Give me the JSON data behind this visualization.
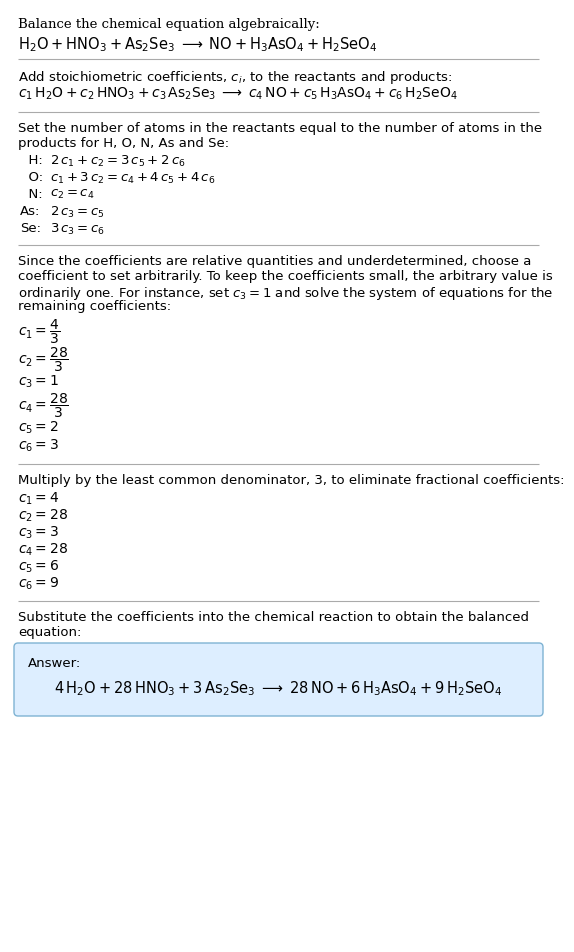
{
  "bg_color": "#ffffff",
  "text_color": "#000000",
  "divider_color": "#aaaaaa",
  "answer_box_color": "#ddeeff",
  "answer_box_border": "#7fb3d3",
  "s1_header": "Balance the chemical equation algebraically:",
  "s1_eq": "$\\mathrm{H_2O + HNO_3 + As_2Se_3} \\;\\longrightarrow\\; \\mathrm{NO + H_3AsO_4 + H_2SeO_4}$",
  "s2_header": "Add stoichiometric coefficients, $c_i$, to the reactants and products:",
  "s2_eq": "$c_1\\,\\mathrm{H_2O} + c_2\\,\\mathrm{HNO_3} + c_3\\,\\mathrm{As_2Se_3} \\;\\longrightarrow\\; c_4\\,\\mathrm{NO} + c_5\\,\\mathrm{H_3AsO_4} + c_6\\,\\mathrm{H_2SeO_4}$",
  "s3_header_line1": "Set the number of atoms in the reactants equal to the number of atoms in the",
  "s3_header_line2": "products for H, O, N, As and Se:",
  "s3_rows": [
    [
      "  H:",
      "$2\\,c_1 + c_2 = 3\\,c_5 + 2\\,c_6$"
    ],
    [
      "  O:",
      "$c_1 + 3\\,c_2 = c_4 + 4\\,c_5 + 4\\,c_6$"
    ],
    [
      "  N:",
      "$c_2 = c_4$"
    ],
    [
      "As:",
      "$2\\,c_3 = c_5$"
    ],
    [
      "Se:",
      "$3\\,c_3 = c_6$"
    ]
  ],
  "s4_header_lines": [
    "Since the coefficients are relative quantities and underdetermined, choose a",
    "coefficient to set arbitrarily. To keep the coefficients small, the arbitrary value is",
    "ordinarily one. For instance, set $c_3 = 1$ and solve the system of equations for the",
    "remaining coefficients:"
  ],
  "s4_lines": [
    "$c_1 = \\dfrac{4}{3}$",
    "$c_2 = \\dfrac{28}{3}$",
    "$c_3 = 1$",
    "$c_4 = \\dfrac{28}{3}$",
    "$c_5 = 2$",
    "$c_6 = 3$"
  ],
  "s5_header": "Multiply by the least common denominator, 3, to eliminate fractional coefficients:",
  "s5_lines": [
    "$c_1 = 4$",
    "$c_2 = 28$",
    "$c_3 = 3$",
    "$c_4 = 28$",
    "$c_5 = 6$",
    "$c_6 = 9$"
  ],
  "s6_header_line1": "Substitute the coefficients into the chemical reaction to obtain the balanced",
  "s6_header_line2": "equation:",
  "answer_label": "Answer:",
  "answer_eq": "$4\\,\\mathrm{H_2O} + 28\\,\\mathrm{HNO_3} + 3\\,\\mathrm{As_2Se_3} \\;\\longrightarrow\\; 28\\,\\mathrm{NO} + 6\\,\\mathrm{H_3AsO_4} + 9\\,\\mathrm{H_2SeO_4}$"
}
